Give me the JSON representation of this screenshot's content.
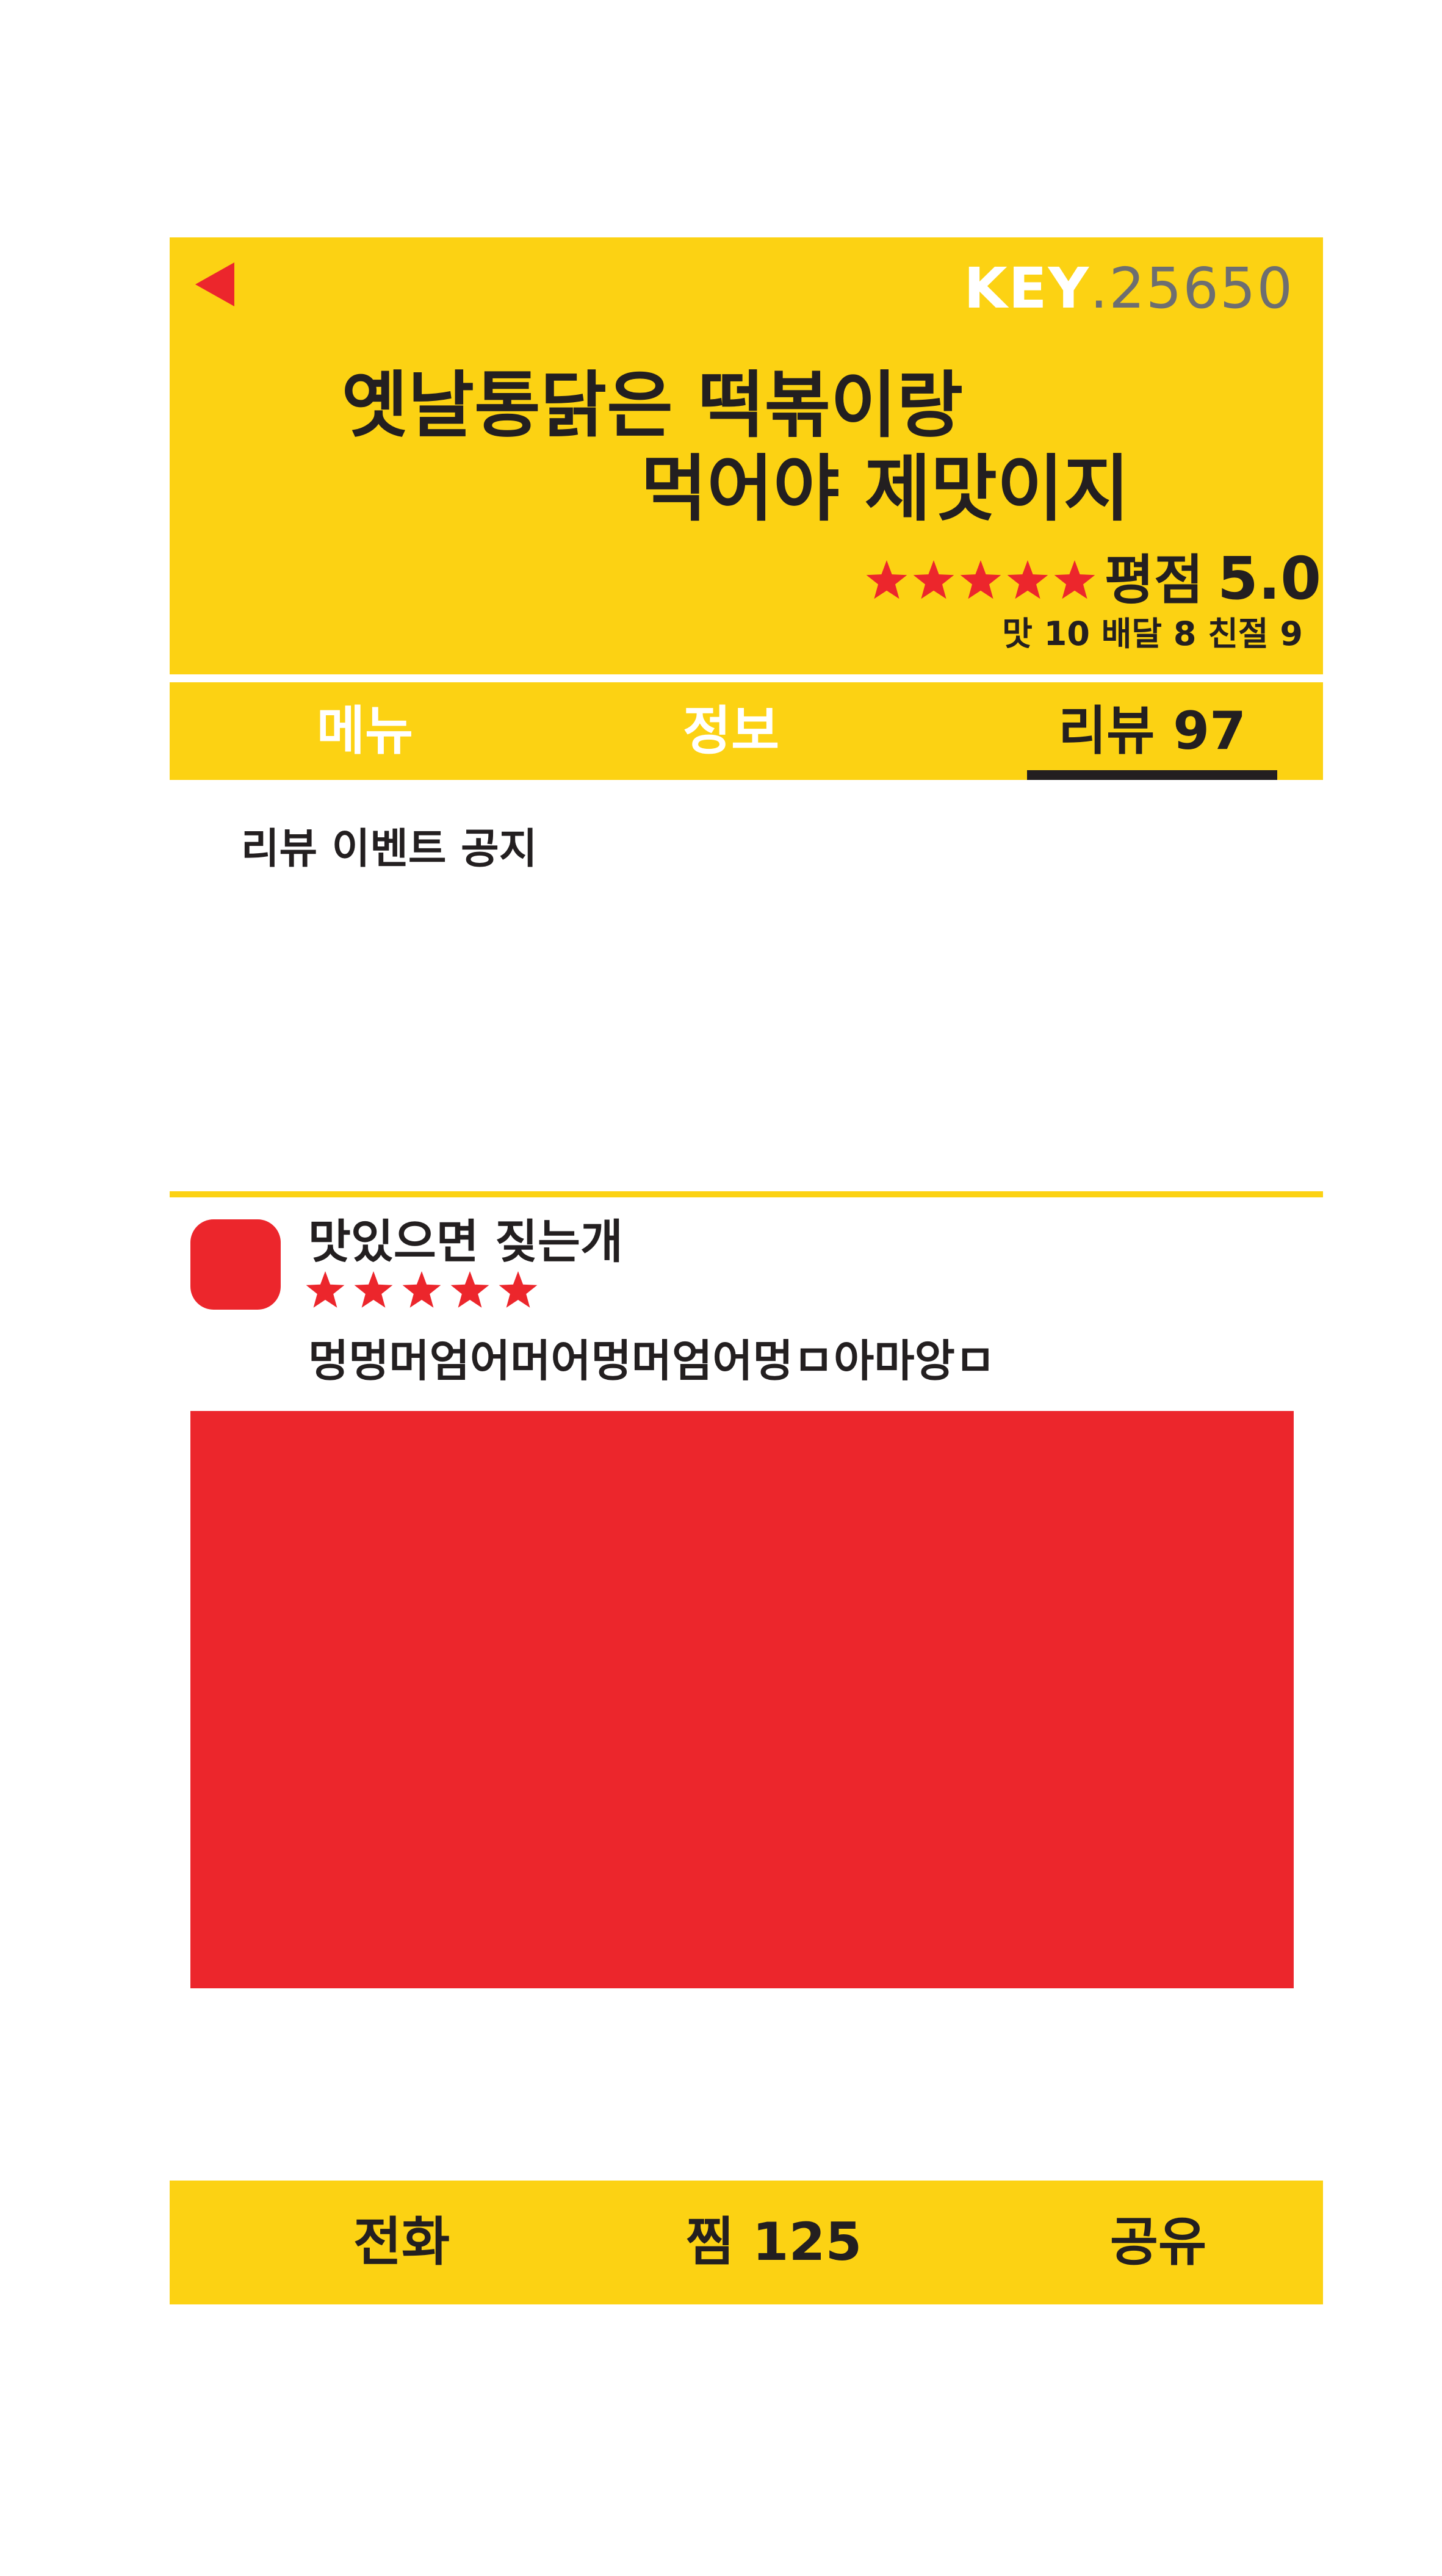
{
  "header": {
    "key_prefix": "KEY",
    "key_dot": ".",
    "key_number": "25650",
    "title_line1": "옛날통닭은 떡볶이랑",
    "title_line2": "먹어야 제맛이지",
    "rating_label": "평점",
    "rating_value": "5.0",
    "rating_stars": 5,
    "sub_ratings": "맛 10 배달 8 친절 9"
  },
  "tabs": [
    {
      "label": "메뉴",
      "active": false
    },
    {
      "label": "정보",
      "active": false
    },
    {
      "label": "리뷰 97",
      "active": true
    }
  ],
  "notice": "리뷰 이벤트 공지",
  "review": {
    "nickname": "맛있으면 짖는개",
    "stars": 5,
    "text": "멍멍머엄어머어멍머엄어멍ㅁ아마앙ㅁ"
  },
  "bottom_bar": {
    "call_label": "전화",
    "save_label": "찜 125",
    "share_label": "공유"
  },
  "colors": {
    "yellow": "#fcd213",
    "red": "#ec262c",
    "dark": "#231f20",
    "white": "#ffffff",
    "gray": "#6d6e71"
  },
  "icons": {
    "back": "back-arrow-icon",
    "star": "star-icon"
  }
}
